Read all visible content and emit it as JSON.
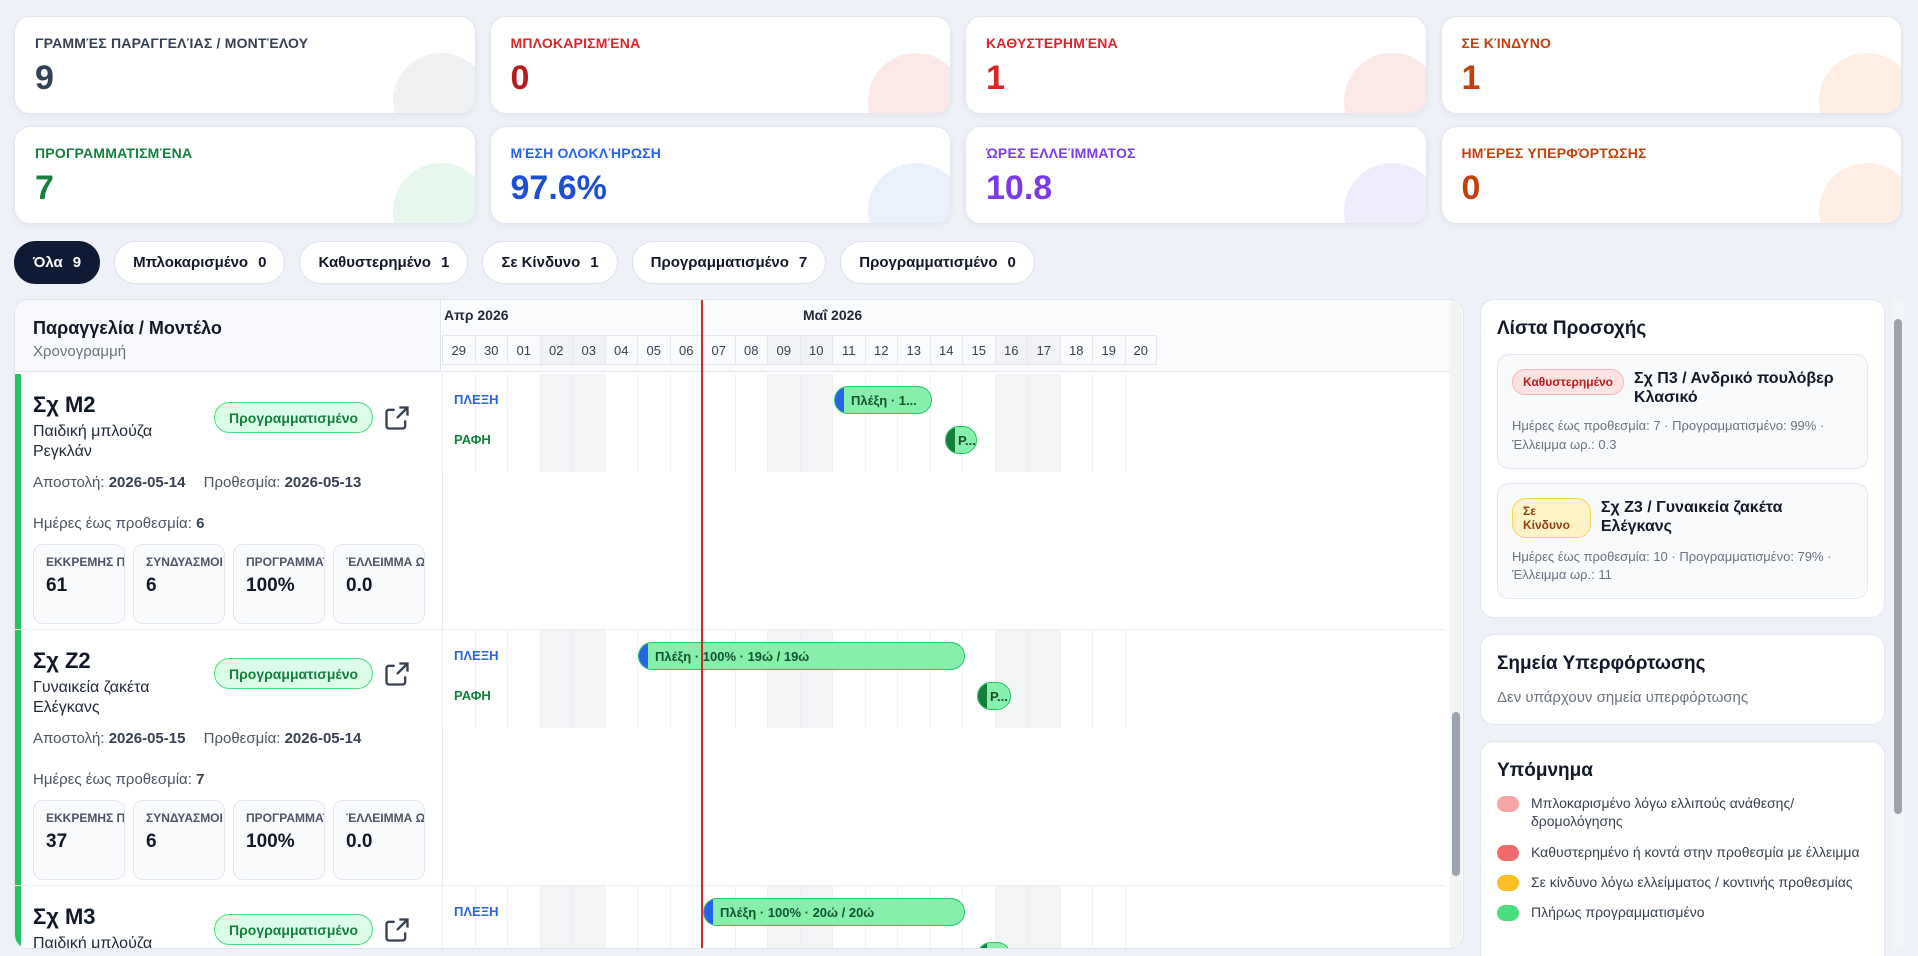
{
  "kpis": [
    {
      "label": "ΓΡΑΜΜΈΣ ΠΑΡΑΓΓΕΛΊΑΣ / ΜΟΝΤΈΛΟΥ",
      "value": "9",
      "color": "#334155",
      "blob": "#e2e5ea"
    },
    {
      "label": "ΜΠΛΟΚΑΡΙΣΜΈΝΑ",
      "value": "0",
      "color": "#dc2626",
      "valcolor": "#b91c1c",
      "blob": "#fbd5d5"
    },
    {
      "label": "ΚΑΘΥΣΤΕΡΗΜΈΝΑ",
      "value": "1",
      "color": "#dc2626",
      "valcolor": "#dc2626",
      "blob": "#fcd6d6"
    },
    {
      "label": "ΣΕ ΚΊΝΔΥΝΟ",
      "value": "1",
      "color": "#c2410c",
      "valcolor": "#c2410c",
      "blob": "#fde0cc"
    },
    {
      "label": "ΠΡΟΓΡΑΜΜΑΤΙΣΜΈΝΑ",
      "value": "7",
      "color": "#15803d",
      "valcolor": "#15803d",
      "blob": "#d1f1df"
    },
    {
      "label": "ΜΈΣΗ ΟΛΟΚΛΉΡΩΣΗ",
      "value": "97.6%",
      "color": "#2563eb",
      "valcolor": "#1d4ed8",
      "blob": "#dbe4fb"
    },
    {
      "label": "ΏΡΕΣ ΕΛΛΕΊΜΜΑΤΟΣ",
      "value": "10.8",
      "color": "#7c3aed",
      "valcolor": "#7c3aed",
      "blob": "#e6dcfb"
    },
    {
      "label": "ΗΜΈΡΕΣ ΥΠΕΡΦΌΡΤΩΣΗΣ",
      "value": "0",
      "color": "#c2410c",
      "valcolor": "#c2410c",
      "blob": "#fde0cc"
    }
  ],
  "filters": [
    {
      "label": "Όλα",
      "count": "9",
      "active": true
    },
    {
      "label": "Μπλοκαρισμένο",
      "count": "0"
    },
    {
      "label": "Καθυστερημένο",
      "count": "1"
    },
    {
      "label": "Σε Κίνδυνο",
      "count": "1"
    },
    {
      "label": "Προγραμματισμένο",
      "count": "7"
    },
    {
      "label": "Προγραμματισμένο",
      "count": "0"
    }
  ],
  "gantt": {
    "left_title": "Παραγγελία / Μοντέλο",
    "left_subtitle": "Χρονογραμμή",
    "months": [
      {
        "label": "Απρ 2026"
      },
      {
        "label": "Μαΐ 2026"
      }
    ],
    "days": [
      "29",
      "30",
      "01",
      "02",
      "03",
      "04",
      "05",
      "06",
      "07",
      "08",
      "09",
      "10",
      "11",
      "12",
      "13",
      "14",
      "15",
      "16",
      "17",
      "18",
      "19",
      "20"
    ],
    "weekend_indices": [
      3,
      4,
      10,
      11,
      17,
      18
    ],
    "today_index": 8,
    "rows": [
      {
        "code": "Σχ Μ2",
        "model": "Παιδική μπλούζα Ρεγκλάν",
        "status": "Προγραμματισμένο",
        "ship_label": "Αποστολή:",
        "ship": "2026-05-14",
        "deadline_label": "Προθεσμία:",
        "deadline": "2026-05-13",
        "days_label": "Ημέρες έως προθεσμία:",
        "days_value": "6",
        "stats": [
          {
            "label": "ΕΚΚΡΕΜΗΣ ΠΟΣΟΤΗΤΑ",
            "value": "61"
          },
          {
            "label": "ΣΥΝΔΥΑΣΜΟΙ",
            "value": "6"
          },
          {
            "label": "ΠΡΟΓΡΑΜΜΑΤ",
            "value": "100%"
          },
          {
            "label": "ΈΛΛΕΙΜΜΑ ΩΡ.",
            "value": "0.0"
          }
        ],
        "lanes": [
          {
            "label": "ΠΛΕΞΗ",
            "bar": "Πλέξη · 1..."
          },
          {
            "label": "ΡΑΦΗ",
            "bar": "Ρ..."
          }
        ]
      },
      {
        "code": "Σχ Ζ2",
        "model": "Γυναικεία ζακέτα Ελέγκανς",
        "status": "Προγραμματισμένο",
        "ship_label": "Αποστολή:",
        "ship": "2026-05-15",
        "deadline_label": "Προθεσμία:",
        "deadline": "2026-05-14",
        "days_label": "Ημέρες έως προθεσμία:",
        "days_value": "7",
        "stats": [
          {
            "label": "ΕΚΚΡΕΜΗΣ ΠΟΣΟΤΗΤΑ",
            "value": "37"
          },
          {
            "label": "ΣΥΝΔΥΑΣΜΟΙ",
            "value": "6"
          },
          {
            "label": "ΠΡΟΓΡΑΜΜΑΤ",
            "value": "100%"
          },
          {
            "label": "ΈΛΛΕΙΜΜΑ ΩΡ.",
            "value": "0.0"
          }
        ],
        "lanes": [
          {
            "label": "ΠΛΕΞΗ",
            "bar": "Πλέξη · 100% · 19ώ / 19ώ"
          },
          {
            "label": "ΡΑΦΗ",
            "bar": "Ρ..."
          }
        ]
      },
      {
        "code": "Σχ Μ3",
        "model": "Παιδική μπλούζα",
        "status": "Προγραμματισμένο",
        "lanes": [
          {
            "label": "ΠΛΕΞΗ",
            "bar": "Πλέξη · 100% · 20ώ / 20ώ"
          }
        ]
      }
    ]
  },
  "watchlist": {
    "title": "Λίστα Προσοχής",
    "items": [
      {
        "badge": "Καθυστερημένο",
        "title": "Σχ Π3 / Ανδρικό πουλόβερ Κλασικό",
        "meta": "Ημέρες έως προθεσμία: 7 · Προγραμματισμένο: 99% · Έλλειμμα ωρ.: 0.3"
      },
      {
        "badge": "Σε Κίνδυνο",
        "title": "Σχ Ζ3 / Γυναικεία ζακέτα Ελέγκανς",
        "meta": "Ημέρες έως προθεσμία: 10 · Προγραμματισμένο: 79% · Έλλειμμα ωρ.: 11"
      }
    ]
  },
  "overload": {
    "title": "Σημεία Υπερφόρτωσης",
    "empty": "Δεν υπάρχουν σημεία υπερφόρτωσης"
  },
  "legend": {
    "title": "Υπόμνημα",
    "items": [
      {
        "label": "Μπλοκαρισμένο λόγω ελλιπούς ανάθεσης/δρομολόγησης",
        "color": "#f4a5a5"
      },
      {
        "label": "Καθυστερημένο ή κοντά στην προθεσμία με έλλειμμα",
        "color": "#ef6b6b"
      },
      {
        "label": "Σε κίνδυνο λόγω ελλείμματος / κοντινής προθεσμίας",
        "color": "#fbbf24"
      },
      {
        "label": "Πλήρως προγραμματισμένο",
        "color": "#4ade80"
      }
    ]
  }
}
